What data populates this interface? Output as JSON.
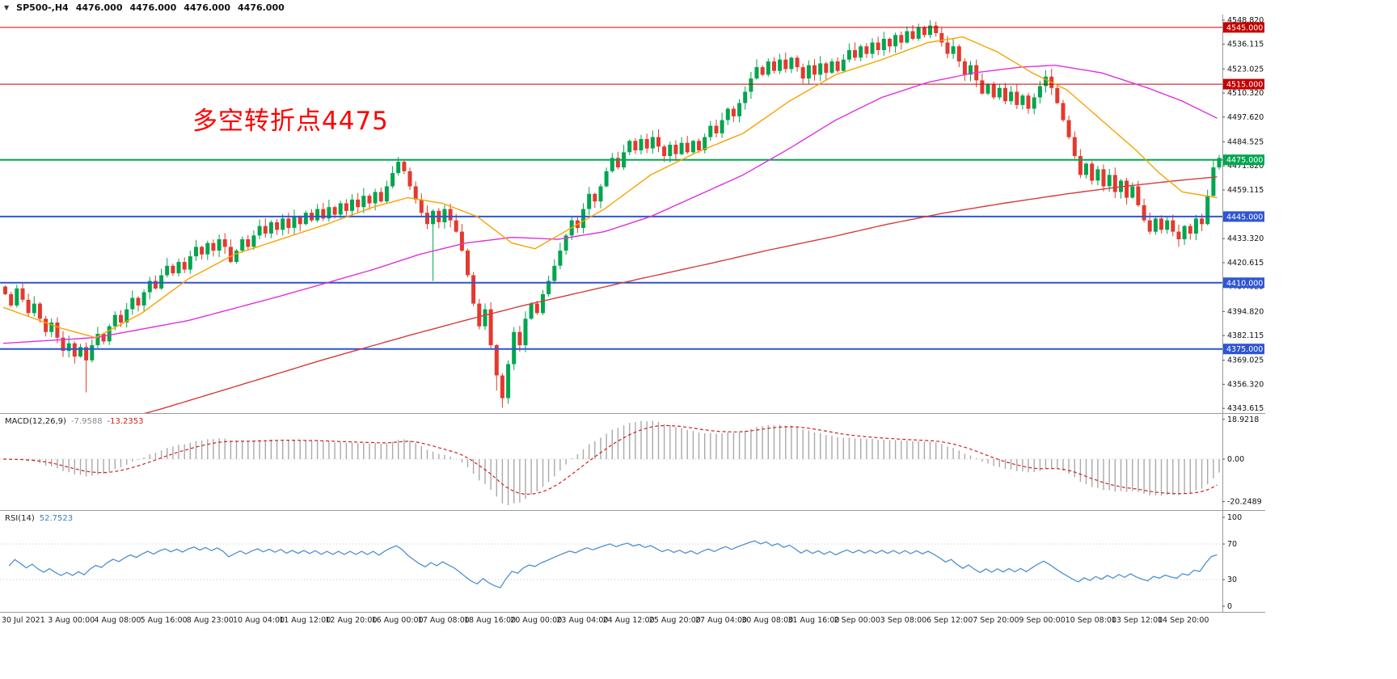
{
  "header": {
    "collapse_icon": "▼",
    "symbol_period": "SP500-,H4",
    "open": "4476.000",
    "high": "4476.000",
    "low": "4476.000",
    "close": "4476.000"
  },
  "annotation": {
    "text": "多空转折点4475",
    "color": "#fd0000"
  },
  "colors": {
    "up_candle": "#00a54f",
    "down_candle": "#e23a2e",
    "separator": "#9a9a9a",
    "axis_text": "#111111"
  },
  "chart_data": {
    "type": "candlestick+indicators",
    "symbol": "SP500-",
    "timeframe": "H4",
    "x_labels": [
      "30 Jul 2021",
      "3 Aug 00:00",
      "4 Aug 08:00",
      "5 Aug 16:00",
      "8 Aug 23:00",
      "10 Aug 04:00",
      "11 Aug 12:00",
      "12 Aug 20:00",
      "16 Aug 00:00",
      "17 Aug 08:00",
      "18 Aug 16:00",
      "20 Aug 00:00",
      "23 Aug 04:00",
      "24 Aug 12:00",
      "25 Aug 20:00",
      "27 Aug 04:00",
      "30 Aug 08:00",
      "31 Aug 16:00",
      "2 Sep 00:00",
      "3 Sep 08:00",
      "6 Sep 12:00",
      "7 Sep 20:00",
      "9 Sep 00:00",
      "10 Sep 08:00",
      "13 Sep 12:00",
      "14 Sep 20:00"
    ],
    "price_axis": {
      "min": 4343.615,
      "max": 4548.82,
      "labels": [
        "4548.820",
        "4536.115",
        "4523.025",
        "4510.320",
        "4497.620",
        "4484.525",
        "4471.820",
        "4459.115",
        "4433.320",
        "4420.615",
        "4407.925",
        "4394.820",
        "4382.115",
        "4369.025",
        "4356.320",
        "4343.615"
      ]
    },
    "levels": [
      {
        "price": 4545,
        "label": "4545.000",
        "color": "#c40000",
        "width": 1
      },
      {
        "price": 4515,
        "label": "4515.000",
        "color": "#c40000",
        "width": 1
      },
      {
        "price": 4475,
        "label": "4475.000",
        "color": "#00a651",
        "width": 2
      },
      {
        "price": 4445,
        "label": "4445.000",
        "color": "#2e55d4",
        "width": 2
      },
      {
        "price": 4410,
        "label": "4410.000",
        "color": "#2e55d4",
        "width": 2
      },
      {
        "price": 4375,
        "label": "4375.000",
        "color": "#2e55d4",
        "width": 2
      }
    ],
    "candles": {
      "first_open": 4408,
      "closes": [
        4404,
        4398,
        4407,
        4401,
        4394,
        4399,
        4391,
        4384,
        4389,
        4381,
        4374,
        4378,
        4371,
        4376,
        4369,
        4377,
        4383,
        4379,
        4387,
        4393,
        4389,
        4396,
        4402,
        4398,
        4405,
        4411,
        4407,
        4414,
        4419,
        4415,
        4421,
        4417,
        4424,
        4429,
        4425,
        4431,
        4427,
        4433,
        4429,
        4421,
        4427,
        4433,
        4429,
        4435,
        4440,
        4436,
        4442,
        4438,
        4444,
        4439,
        4445,
        4441,
        4447,
        4443,
        4449,
        4444,
        4450,
        4446,
        4452,
        4448,
        4454,
        4450,
        4456,
        4452,
        4458,
        4453,
        4461,
        4468,
        4474,
        4469,
        4461,
        4454,
        4447,
        4441,
        4448,
        4442,
        4449,
        4443,
        4437,
        4427,
        4414,
        4399,
        4387,
        4396,
        4377,
        4361,
        4349,
        4367,
        4384,
        4377,
        4391,
        4399,
        4394,
        4404,
        4411,
        4419,
        4427,
        4435,
        4443,
        4439,
        4449,
        4457,
        4453,
        4461,
        4469,
        4476,
        4471,
        4479,
        4485,
        4480,
        4486,
        4481,
        4487,
        4482,
        4477,
        4483,
        4478,
        4484,
        4479,
        4485,
        4480,
        4487,
        4493,
        4489,
        4496,
        4502,
        4498,
        4505,
        4511,
        4518,
        4524,
        4520,
        4527,
        4522,
        4528,
        4523,
        4529,
        4524,
        4518,
        4525,
        4520,
        4526,
        4521,
        4527,
        4522,
        4528,
        4533,
        4529,
        4535,
        4531,
        4537,
        4533,
        4539,
        4535,
        4541,
        4537,
        4543,
        4539,
        4545,
        4541,
        4546,
        4542,
        4537,
        4531,
        4535,
        4527,
        4520,
        4525,
        4517,
        4510,
        4515,
        4508,
        4513,
        4506,
        4511,
        4504,
        4509,
        4502,
        4508,
        4514,
        4519,
        4513,
        4505,
        4496,
        4487,
        4477,
        4467,
        4473,
        4464,
        4470,
        4461,
        4467,
        4458,
        4464,
        4455,
        4461,
        4451,
        4443,
        4437,
        4444,
        4438,
        4443,
        4437,
        4433,
        4440,
        4436,
        4444,
        4441,
        4456,
        4471,
        4476
      ],
      "wick_overrides": {
        "14": {
          "low": 4352
        },
        "68": {
          "high": 4476.5
        },
        "74": {
          "low": 4411
        },
        "85": {
          "low": 4353
        },
        "86": {
          "low": 4344
        },
        "158": {
          "high": 4547
        },
        "160": {
          "high": 4548.8
        },
        "203": {
          "low": 4429
        },
        "210": {
          "high": 4477.6
        }
      }
    },
    "moving_averages": {
      "fast": {
        "color": "#f7a400",
        "anchors": [
          [
            0,
            4397
          ],
          [
            10,
            4386
          ],
          [
            16,
            4381
          ],
          [
            24,
            4394
          ],
          [
            32,
            4412
          ],
          [
            40,
            4425
          ],
          [
            48,
            4433
          ],
          [
            56,
            4441
          ],
          [
            64,
            4450
          ],
          [
            70,
            4455
          ],
          [
            76,
            4452
          ],
          [
            82,
            4445
          ],
          [
            88,
            4431
          ],
          [
            92,
            4428
          ],
          [
            96,
            4435
          ],
          [
            104,
            4449
          ],
          [
            112,
            4467
          ],
          [
            120,
            4479
          ],
          [
            128,
            4489
          ],
          [
            136,
            4506
          ],
          [
            144,
            4520
          ],
          [
            152,
            4528
          ],
          [
            160,
            4537
          ],
          [
            166,
            4540
          ],
          [
            172,
            4532
          ],
          [
            178,
            4521
          ],
          [
            184,
            4512
          ],
          [
            190,
            4496
          ],
          [
            196,
            4480
          ],
          [
            200,
            4468
          ],
          [
            204,
            4458
          ],
          [
            210,
            4455
          ]
        ]
      },
      "medium": {
        "color": "#df30df",
        "anchors": [
          [
            0,
            4378
          ],
          [
            16,
            4381
          ],
          [
            32,
            4390
          ],
          [
            48,
            4403
          ],
          [
            64,
            4417
          ],
          [
            72,
            4425
          ],
          [
            80,
            4431
          ],
          [
            88,
            4434
          ],
          [
            96,
            4433
          ],
          [
            104,
            4437
          ],
          [
            112,
            4445
          ],
          [
            120,
            4456
          ],
          [
            128,
            4467
          ],
          [
            136,
            4481
          ],
          [
            144,
            4496
          ],
          [
            152,
            4508
          ],
          [
            160,
            4516
          ],
          [
            168,
            4521
          ],
          [
            176,
            4524
          ],
          [
            182,
            4525
          ],
          [
            190,
            4521
          ],
          [
            198,
            4513
          ],
          [
            204,
            4506
          ],
          [
            210,
            4497
          ]
        ]
      },
      "slow": {
        "color": "#d43c3c",
        "anchors": [
          [
            0,
            4321
          ],
          [
            27,
            4343
          ],
          [
            40,
            4355
          ],
          [
            55,
            4369
          ],
          [
            70,
            4382
          ],
          [
            81,
            4391
          ],
          [
            90,
            4398
          ],
          [
            100,
            4405
          ],
          [
            110,
            4412
          ],
          [
            122,
            4420
          ],
          [
            132,
            4427
          ],
          [
            143,
            4434
          ],
          [
            153,
            4441
          ],
          [
            163,
            4447
          ],
          [
            173,
            4452
          ],
          [
            184,
            4457
          ],
          [
            194,
            4461
          ],
          [
            203,
            4464
          ],
          [
            210,
            4466
          ]
        ]
      }
    },
    "macd": {
      "label": "MACD(12,26,9)",
      "value_main": "-7.9588",
      "value_signal": "-13.2353",
      "params": [
        12,
        26,
        9
      ],
      "histogram_color": "#a9a9a9",
      "signal_color": "#cc2222",
      "axis": [
        {
          "label": "18.9218",
          "value": 18.9218
        },
        {
          "label": "0.00",
          "value": 0
        },
        {
          "label": "-20.2489",
          "value": -20.2489
        }
      ]
    },
    "rsi": {
      "label": "RSI(14)",
      "value": "52.7523",
      "period": 14,
      "color": "#4f8fd2",
      "guide_levels": [
        70,
        30
      ],
      "axis": [
        {
          "label": "100",
          "value": 100
        },
        {
          "label": "70",
          "value": 70
        },
        {
          "label": "30",
          "value": 30
        },
        {
          "label": "0",
          "value": 0
        }
      ]
    }
  }
}
